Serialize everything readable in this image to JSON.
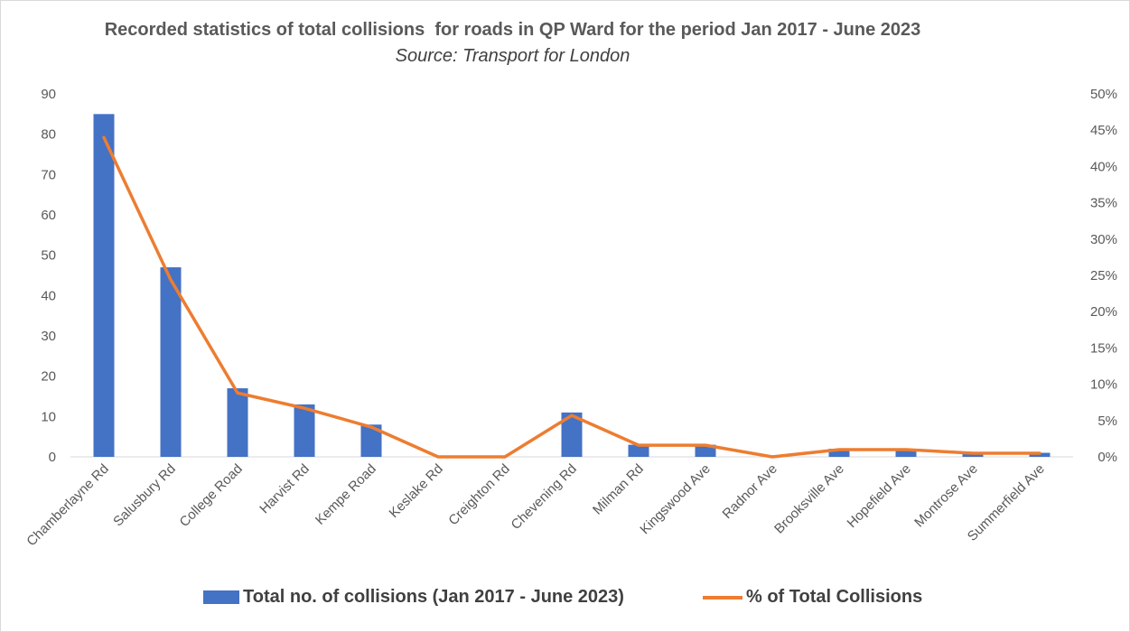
{
  "chart_data": {
    "type": "bar",
    "title": "Recorded statistics of total collisions  for roads in QP Ward for the period Jan 2017 - June 2023",
    "subtitle": "Source: Transport for London",
    "categories": [
      "Chamberlayne Rd",
      "Salusbury Rd",
      "College Road",
      "Harvist Rd",
      "Kempe Road",
      "Keslake Rd",
      "Creighton Rd",
      "Chevening Rd",
      "Milman Rd",
      "Kingswood Ave",
      "Radnor Ave",
      "Brooksville Ave",
      "Hopefield Ave",
      "Montrose Ave",
      "Summerfield Ave"
    ],
    "series": [
      {
        "name": "Total no. of collisions (Jan 2017 - June 2023)",
        "type": "bar",
        "axis": "left",
        "color": "#4472c4",
        "values": [
          85,
          47,
          17,
          13,
          8,
          0,
          0,
          11,
          3,
          3,
          0,
          2,
          2,
          1,
          1
        ]
      },
      {
        "name": "% of Total Collisions",
        "type": "line",
        "axis": "right",
        "color": "#ed7d31",
        "values": [
          44.0,
          24.4,
          8.8,
          6.7,
          4.1,
          0.0,
          0.0,
          5.7,
          1.6,
          1.6,
          0.0,
          1.0,
          1.0,
          0.5,
          0.5
        ]
      }
    ],
    "y_left": {
      "min": 0,
      "max": 90,
      "ticks": [
        "0",
        "10",
        "20",
        "30",
        "40",
        "50",
        "60",
        "70",
        "80",
        "90"
      ]
    },
    "y_right": {
      "min": 0,
      "max": 50,
      "ticks": [
        "0%",
        "5%",
        "10%",
        "15%",
        "20%",
        "25%",
        "30%",
        "35%",
        "40%",
        "45%",
        "50%"
      ]
    },
    "xlabel": "",
    "ylabel": "",
    "grid": false,
    "legend": "bottom"
  }
}
